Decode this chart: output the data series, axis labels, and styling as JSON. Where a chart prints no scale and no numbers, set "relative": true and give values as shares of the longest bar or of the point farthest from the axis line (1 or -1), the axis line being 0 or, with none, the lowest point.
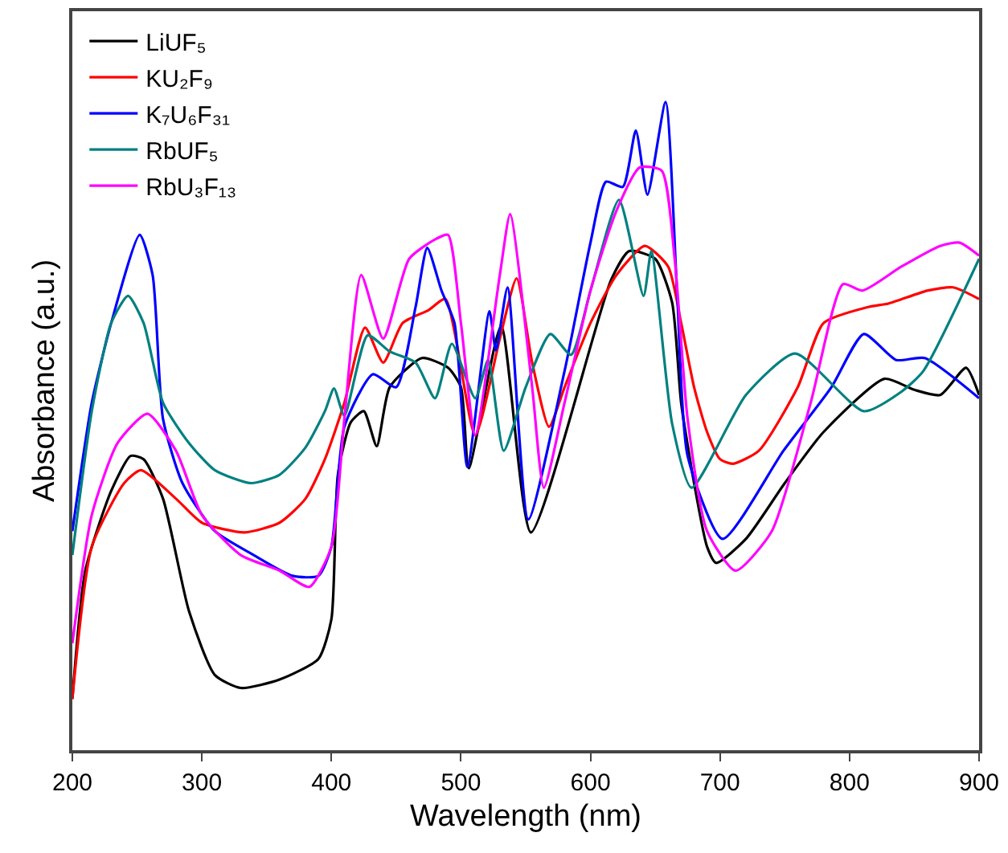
{
  "chart_data": {
    "type": "line",
    "relative": true,
    "xlabel": "Wavelength (nm)",
    "ylabel": "Absorbance (a.u.)",
    "xlim": [
      200,
      900
    ],
    "xticks": [
      200,
      300,
      400,
      500,
      600,
      700,
      800,
      900
    ],
    "legend": "top left",
    "marker": "none",
    "line_style": "solid",
    "series": [
      {
        "name": "LiUF₅",
        "color": "#000000",
        "x": [
          200,
          210,
          230,
          245,
          255,
          270,
          290,
          310,
          330,
          360,
          390,
          400,
          405,
          415,
          425,
          435,
          445,
          470,
          490,
          500,
          506,
          531,
          554,
          616,
          630,
          650,
          663,
          670,
          680,
          690,
          697,
          720,
          750,
          780,
          827,
          850,
          870,
          890,
          900
        ],
        "values": [
          0.079,
          0.277,
          0.4,
          0.454,
          0.449,
          0.388,
          0.215,
          0.116,
          0.096,
          0.109,
          0.141,
          0.202,
          0.425,
          0.506,
          0.523,
          0.469,
          0.56,
          0.605,
          0.59,
          0.56,
          0.435,
          0.654,
          0.336,
          0.726,
          0.77,
          0.758,
          0.691,
          0.536,
          0.412,
          0.314,
          0.289,
          0.326,
          0.412,
          0.491,
          0.573,
          0.556,
          0.548,
          0.59,
          0.548
        ]
      },
      {
        "name": "KU₂F₉",
        "color": "#ff0000",
        "x": [
          200,
          215,
          240,
          253,
          280,
          300,
          333,
          360,
          380,
          395,
          410,
          426,
          440,
          455,
          475,
          488,
          511,
          530,
          543,
          555,
          568,
          580,
          600,
          620,
          642,
          660,
          670,
          680,
          690,
          700,
          710,
          730,
          760,
          780,
          815,
          830,
          860,
          880,
          900
        ],
        "values": [
          0.079,
          0.314,
          0.412,
          0.432,
          0.388,
          0.351,
          0.336,
          0.351,
          0.388,
          0.449,
          0.536,
          0.652,
          0.598,
          0.659,
          0.679,
          0.696,
          0.486,
          0.635,
          0.728,
          0.598,
          0.499,
          0.56,
          0.659,
          0.733,
          0.778,
          0.746,
          0.659,
          0.56,
          0.491,
          0.449,
          0.442,
          0.462,
          0.56,
          0.659,
          0.684,
          0.689,
          0.709,
          0.714,
          0.696
        ]
      },
      {
        "name": "K₇U₆F₃₁",
        "color": "#0000ff",
        "x": [
          200,
          215,
          230,
          252,
          262,
          270,
          285,
          310,
          340,
          370,
          390,
          400,
          410,
          432,
          450,
          465,
          474,
          485,
          495,
          505,
          522,
          527,
          536,
          552,
          580,
          600,
          612,
          625,
          635,
          644,
          658,
          667,
          675,
          702,
          749,
          786,
          811,
          836,
          858,
          900
        ],
        "values": [
          0.338,
          0.536,
          0.659,
          0.795,
          0.733,
          0.511,
          0.412,
          0.338,
          0.301,
          0.269,
          0.269,
          0.314,
          0.499,
          0.58,
          0.56,
          0.684,
          0.775,
          0.709,
          0.659,
          0.437,
          0.677,
          0.617,
          0.714,
          0.356,
          0.585,
          0.783,
          0.877,
          0.869,
          0.956,
          0.857,
          1,
          0.701,
          0.454,
          0.326,
          0.462,
          0.56,
          0.642,
          0.602,
          0.605,
          0.543
        ]
      },
      {
        "name": "RbUF₅",
        "color": "#008080",
        "x": [
          200,
          215,
          230,
          243,
          255,
          270,
          290,
          310,
          338,
          360,
          380,
          395,
          402,
          410,
          428,
          445,
          465,
          480,
          493,
          511,
          521,
          533,
          550,
          569,
          585,
          600,
          622,
          641,
          647,
          663,
          678,
          720,
          758,
          811,
          840,
          857,
          900
        ],
        "values": [
          0.301,
          0.523,
          0.659,
          0.701,
          0.659,
          0.536,
          0.474,
          0.432,
          0.412,
          0.425,
          0.467,
          0.523,
          0.558,
          0.516,
          0.64,
          0.615,
          0.598,
          0.543,
          0.627,
          0.543,
          0.602,
          0.462,
          0.56,
          0.642,
          0.61,
          0.709,
          0.849,
          0.701,
          0.77,
          0.504,
          0.405,
          0.548,
          0.612,
          0.523,
          0.553,
          0.585,
          0.758
        ]
      },
      {
        "name": "RbU₃F₁₃",
        "color": "#ff00ff",
        "x": [
          200,
          215,
          235,
          258,
          280,
          300,
          330,
          360,
          383,
          400,
          410,
          423,
          440,
          460,
          480,
          490,
          500,
          511,
          530,
          538,
          555,
          564,
          580,
          600,
          620,
          638,
          655,
          665,
          675,
          690,
          712,
          740,
          770,
          795,
          810,
          840,
          870,
          885,
          900
        ],
        "values": [
          0.165,
          0.363,
          0.474,
          0.519,
          0.462,
          0.363,
          0.301,
          0.277,
          0.252,
          0.314,
          0.511,
          0.733,
          0.635,
          0.758,
          0.788,
          0.795,
          0.659,
          0.486,
          0.733,
          0.827,
          0.56,
          0.405,
          0.536,
          0.709,
          0.832,
          0.899,
          0.894,
          0.758,
          0.511,
          0.338,
          0.277,
          0.338,
          0.536,
          0.719,
          0.709,
          0.746,
          0.778,
          0.783,
          0.763
        ]
      }
    ]
  }
}
